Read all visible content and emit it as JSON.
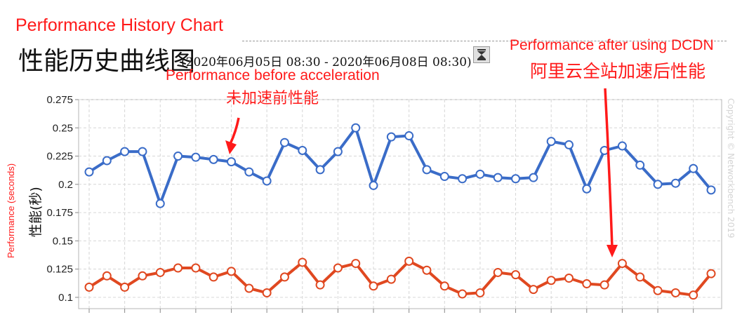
{
  "header": {
    "top_title": "Performance History Chart",
    "cn_title": "性能历史曲线图",
    "date_range": "(2020年06月05日 08:30 - 2020年06月08日 08:30)"
  },
  "annotations": {
    "before_en": "Performance before acceleration",
    "before_cn": "未加速前性能",
    "after_en": "Performance after using DCDN",
    "after_cn": "阿里云全站加速后性能"
  },
  "axis": {
    "ylabel_en": "Performance (seconds)",
    "ylabel_cn": "性能(秒)",
    "copyright": "Copyright © Networkbench 2019"
  },
  "colors": {
    "before": "#3a6cc8",
    "after": "#e04820",
    "annotation": "#ff1a1a",
    "grid": "#d6d6d6"
  },
  "chart_data": {
    "type": "line",
    "ylim": [
      0.09,
      0.275
    ],
    "yticks": [
      0.1,
      0.125,
      0.15,
      0.175,
      0.2,
      0.225,
      0.25,
      0.275
    ],
    "ytick_labels": [
      "0.1",
      "0.125",
      "0.15",
      "0.175",
      "0.2",
      "0.225",
      "0.25",
      "0.275"
    ],
    "grid": true,
    "series": [
      {
        "values": [
          0.211,
          0.221,
          0.229,
          0.229,
          0.183,
          0.225,
          0.224,
          0.222,
          0.22,
          0.211,
          0.203,
          0.237,
          0.23,
          0.213,
          0.229,
          0.25,
          0.199,
          0.242,
          0.243,
          0.213,
          0.207,
          0.205,
          0.209,
          0.206,
          0.205,
          0.206,
          0.238,
          0.235,
          0.196,
          0.23,
          0.234,
          0.217,
          0.2,
          0.201,
          0.214,
          0.195
        ]
      },
      {
        "values": [
          0.109,
          0.119,
          0.109,
          0.119,
          0.122,
          0.126,
          0.126,
          0.118,
          0.123,
          0.108,
          0.104,
          0.118,
          0.131,
          0.111,
          0.126,
          0.13,
          0.11,
          0.116,
          0.132,
          0.124,
          0.11,
          0.103,
          0.104,
          0.122,
          0.12,
          0.107,
          0.115,
          0.117,
          0.112,
          0.111,
          0.13,
          0.118,
          0.106,
          0.104,
          0.102,
          0.121
        ]
      }
    ]
  }
}
